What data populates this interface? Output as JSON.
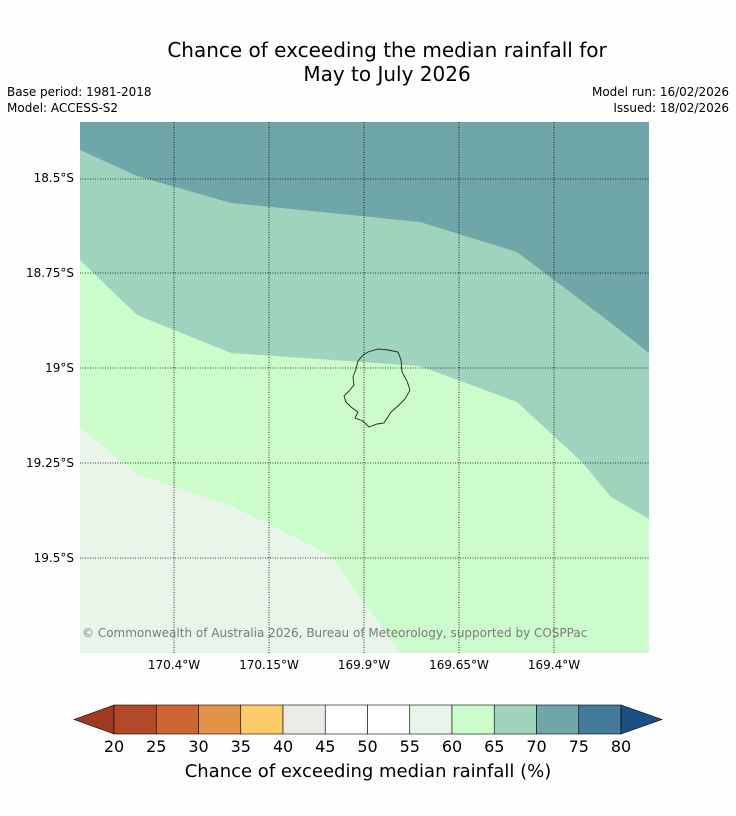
{
  "title": {
    "line1": "Chance of exceeding the median rainfall for",
    "line2": "May to July 2026"
  },
  "meta": {
    "base_period": "Base period: 1981-2018",
    "model": "Model: ACCESS-S2",
    "model_run": "Model run: 16/02/2026",
    "issued": "Issued: 18/02/2026"
  },
  "map": {
    "latitude_labels": [
      "18.5°S",
      "18.75°S",
      "19°S",
      "19.25°S",
      "19.5°S"
    ],
    "longitude_labels": [
      "170.4°W",
      "170.15°W",
      "169.9°W",
      "169.65°W",
      "169.4°W"
    ],
    "copyright": "© Commonwealth of Australia 2026, Bureau of Meteorology, supported by COSPPac",
    "colors": {
      "band_55_60": "#eaf5ea",
      "band_60_65": "#ccfccc",
      "band_65_70": "#9fd3bd",
      "band_70_75": "#6fa6a8",
      "grid": "#000000",
      "island_outline": "#222222"
    }
  },
  "colorbar": {
    "ticks": [
      "20",
      "25",
      "30",
      "35",
      "40",
      "45",
      "50",
      "55",
      "60",
      "65",
      "70",
      "75",
      "80"
    ],
    "label": "Chance of exceeding median rainfall (%)",
    "low_extend_color": "#9e3a22",
    "high_extend_color": "#1a4f86",
    "colors": [
      "#b34a27",
      "#cd6532",
      "#e19447",
      "#fdcc68",
      "#ebeae6",
      "#ffffff",
      "#ffffff",
      "#eaf5ea",
      "#ccfccc",
      "#9fd3bd",
      "#6fa6a8",
      "#447b9a"
    ]
  }
}
